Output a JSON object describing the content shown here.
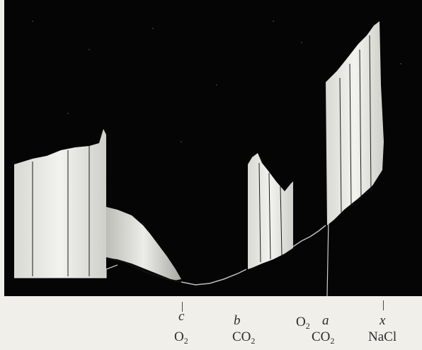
{
  "figure": {
    "description_icon": "kymograph-trace-photo"
  },
  "annotations": {
    "c": {
      "letter": "c",
      "gas": "O",
      "sub": "2"
    },
    "b": {
      "letter": "b",
      "gas": "CO",
      "sub": "2"
    },
    "o2_marker": {
      "gas": "O",
      "sub": "2"
    },
    "a": {
      "letter": "a",
      "gas": "CO",
      "sub": "2"
    },
    "x": {
      "letter": "x",
      "gas": "NaCl"
    }
  }
}
